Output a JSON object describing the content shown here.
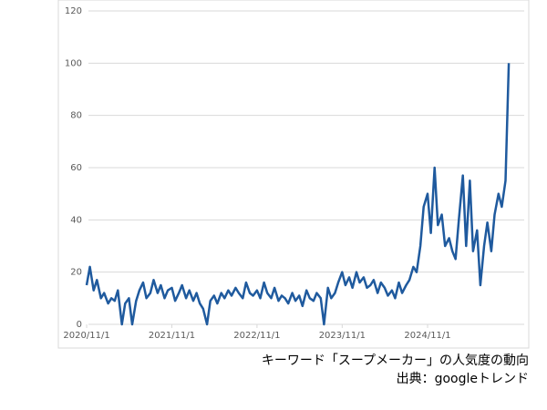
{
  "chart_data": {
    "type": "line",
    "x": [
      "2020/11/1",
      "2020/11/15",
      "2020/12/1",
      "2020/12/15",
      "2021/1/1",
      "2021/1/15",
      "2021/2/1",
      "2021/2/15",
      "2021/3/1",
      "2021/3/15",
      "2021/4/1",
      "2021/4/15",
      "2021/5/1",
      "2021/5/15",
      "2021/6/1",
      "2021/6/15",
      "2021/7/1",
      "2021/7/15",
      "2021/8/1",
      "2021/8/15",
      "2021/9/1",
      "2021/9/15",
      "2021/10/1",
      "2021/10/15",
      "2021/11/1",
      "2021/11/15",
      "2021/12/1",
      "2021/12/15",
      "2022/1/1",
      "2022/1/15",
      "2022/2/1",
      "2022/2/15",
      "2022/3/1",
      "2022/3/15",
      "2022/4/1",
      "2022/4/15",
      "2022/5/1",
      "2022/5/15",
      "2022/6/1",
      "2022/6/15",
      "2022/7/1",
      "2022/7/15",
      "2022/8/1",
      "2022/8/15",
      "2022/9/1",
      "2022/9/15",
      "2022/10/1",
      "2022/10/15",
      "2022/11/1",
      "2022/11/15",
      "2022/12/1",
      "2022/12/15",
      "2023/1/1",
      "2023/1/15",
      "2023/2/1",
      "2023/2/15",
      "2023/3/1",
      "2023/3/15",
      "2023/4/1",
      "2023/4/15",
      "2023/5/1",
      "2023/5/15",
      "2023/6/1",
      "2023/6/15",
      "2023/7/1",
      "2023/7/15",
      "2023/8/1",
      "2023/8/15",
      "2023/9/1",
      "2023/9/15",
      "2023/10/1",
      "2023/10/15",
      "2023/11/1",
      "2023/11/15",
      "2023/12/1",
      "2023/12/15",
      "2024/1/1",
      "2024/1/15",
      "2024/2/1",
      "2024/2/15",
      "2024/3/1",
      "2024/3/15",
      "2024/4/1",
      "2024/4/15",
      "2024/5/1",
      "2024/5/15",
      "2024/6/1",
      "2024/6/15",
      "2024/7/1",
      "2024/7/15",
      "2024/8/1",
      "2024/8/15",
      "2024/9/1",
      "2024/9/15",
      "2024/10/1",
      "2024/10/15",
      "2024/11/1",
      "2024/11/15",
      "2024/12/1",
      "2024/12/15",
      "2025/1/1",
      "2025/1/15",
      "2025/2/1",
      "2025/2/15",
      "2025/3/1",
      "2025/3/15",
      "2025/4/1",
      "2025/4/15",
      "2025/5/1",
      "2025/5/15",
      "2025/6/1",
      "2025/6/15",
      "2025/7/1",
      "2025/7/15",
      "2025/8/1",
      "2025/8/15",
      "2025/9/1",
      "2025/9/15",
      "2025/10/1",
      "2025/10/15"
    ],
    "series": [
      {
        "color": "#1f5a9e",
        "values": [
          15,
          22,
          13,
          17,
          10,
          12,
          8,
          10,
          9,
          13,
          0,
          8,
          10,
          0,
          9,
          13,
          16,
          10,
          12,
          17,
          12,
          15,
          10,
          13,
          14,
          9,
          12,
          15,
          10,
          13,
          9,
          12,
          8,
          6,
          0,
          9,
          11,
          8,
          12,
          10,
          13,
          11,
          14,
          12,
          10,
          16,
          12,
          11,
          13,
          10,
          16,
          12,
          10,
          14,
          9,
          11,
          10,
          8,
          12,
          9,
          11,
          7,
          13,
          10,
          9,
          12,
          10,
          0,
          14,
          10,
          12,
          16,
          20,
          15,
          18,
          14,
          20,
          16,
          18,
          14,
          15,
          17,
          12,
          16,
          14,
          11,
          13,
          10,
          16,
          12,
          15,
          17,
          22,
          20,
          30,
          45,
          50,
          35,
          60,
          38,
          42,
          30,
          33,
          28,
          25,
          40,
          57,
          30,
          55,
          28,
          36,
          15,
          30,
          39,
          28,
          42,
          50,
          45,
          55,
          100
        ]
      }
    ],
    "xlim": [
      "2020/10/24",
      "2025/12/20"
    ],
    "xticks": [
      "2020/11/1",
      "2021/11/1",
      "2022/11/1",
      "2023/11/1",
      "2024/11/1"
    ],
    "ylim": [
      0,
      120
    ],
    "yticks": [
      0,
      20,
      40,
      60,
      80,
      100,
      120
    ],
    "grid": true,
    "caption": "キーワード「スープメーカー」の人気度の動向",
    "source": "出典：googleトレンド"
  }
}
